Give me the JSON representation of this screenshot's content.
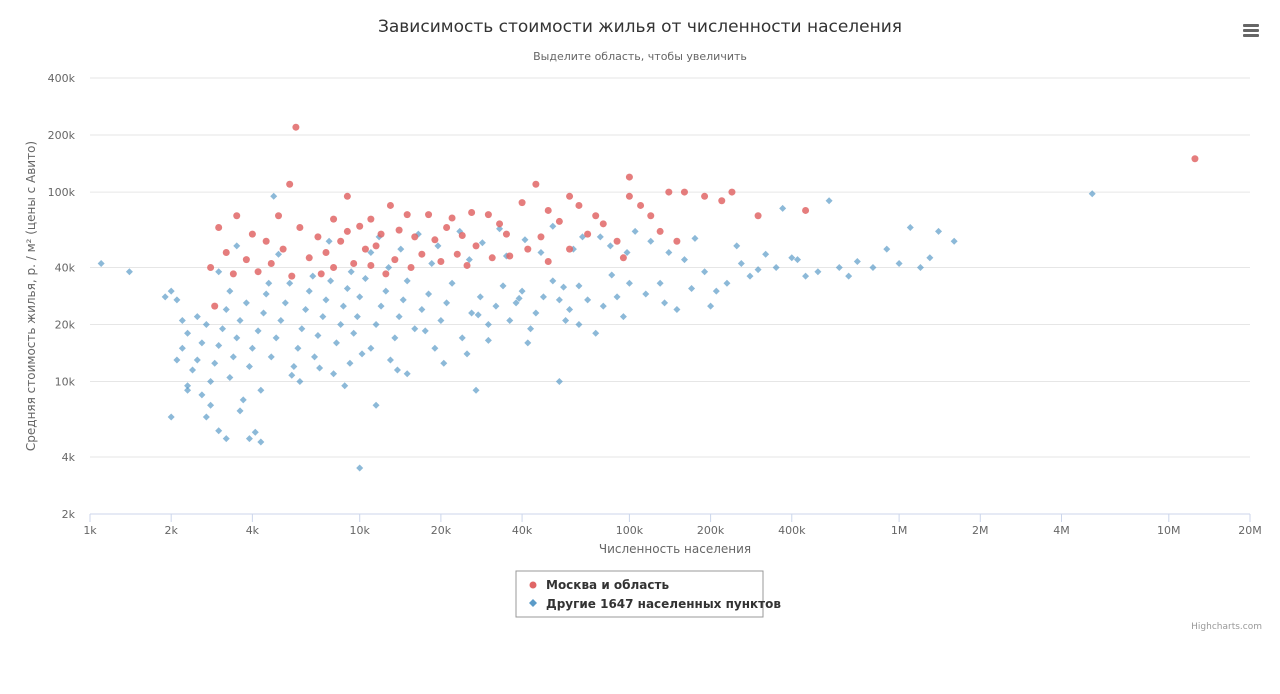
{
  "chart_data": {
    "type": "scatter",
    "title": "Зависимость стоимости жилья от численности населения",
    "subtitle": "Выделите область, чтобы увеличить",
    "xlabel": "Численность населения",
    "ylabel": "Средняя стоимость жилья, р. / м² (цены с Авито)",
    "x_scale": "log",
    "y_scale": "log",
    "xlim": [
      1000,
      20000000
    ],
    "ylim": [
      2000,
      400000
    ],
    "x_ticks": [
      {
        "value": 1000,
        "label": "1k"
      },
      {
        "value": 2000,
        "label": "2k"
      },
      {
        "value": 4000,
        "label": "4k"
      },
      {
        "value": 10000,
        "label": "10k"
      },
      {
        "value": 20000,
        "label": "20k"
      },
      {
        "value": 40000,
        "label": "40k"
      },
      {
        "value": 100000,
        "label": "100k"
      },
      {
        "value": 200000,
        "label": "200k"
      },
      {
        "value": 400000,
        "label": "400k"
      },
      {
        "value": 1000000,
        "label": "1M"
      },
      {
        "value": 2000000,
        "label": "2M"
      },
      {
        "value": 4000000,
        "label": "4M"
      },
      {
        "value": 10000000,
        "label": "10M"
      },
      {
        "value": 20000000,
        "label": "20M"
      }
    ],
    "y_ticks": [
      {
        "value": 2000,
        "label": "2k"
      },
      {
        "value": 4000,
        "label": "4k"
      },
      {
        "value": 10000,
        "label": "10k"
      },
      {
        "value": 20000,
        "label": "20k"
      },
      {
        "value": 40000,
        "label": "40k"
      },
      {
        "value": 100000,
        "label": "100k"
      },
      {
        "value": 200000,
        "label": "200k"
      },
      {
        "value": 400000,
        "label": "400k"
      }
    ],
    "grid": true,
    "legend_position": "bottom-center",
    "credits": "Highcharts.com",
    "series": [
      {
        "name": "Москва и область",
        "color": "#e06666",
        "marker": "circle",
        "points": [
          [
            12500000,
            150000
          ],
          [
            5800,
            220000
          ],
          [
            100000,
            120000
          ],
          [
            100000,
            95000
          ],
          [
            45000,
            110000
          ],
          [
            5500,
            110000
          ],
          [
            60000,
            95000
          ],
          [
            140000,
            100000
          ],
          [
            160000,
            100000
          ],
          [
            190000,
            95000
          ],
          [
            220000,
            90000
          ],
          [
            240000,
            100000
          ],
          [
            300000,
            75000
          ],
          [
            450000,
            80000
          ],
          [
            9000,
            95000
          ],
          [
            13000,
            85000
          ],
          [
            65000,
            85000
          ],
          [
            110000,
            85000
          ],
          [
            50000,
            80000
          ],
          [
            3500,
            75000
          ],
          [
            5000,
            75000
          ],
          [
            8000,
            72000
          ],
          [
            11000,
            72000
          ],
          [
            15000,
            76000
          ],
          [
            18000,
            76000
          ],
          [
            22000,
            73000
          ],
          [
            26000,
            78000
          ],
          [
            30000,
            76000
          ],
          [
            40000,
            88000
          ],
          [
            75000,
            75000
          ],
          [
            120000,
            75000
          ],
          [
            3000,
            65000
          ],
          [
            6000,
            65000
          ],
          [
            10000,
            66000
          ],
          [
            14000,
            63000
          ],
          [
            21000,
            65000
          ],
          [
            33000,
            68000
          ],
          [
            55000,
            70000
          ],
          [
            80000,
            68000
          ],
          [
            4000,
            60000
          ],
          [
            7000,
            58000
          ],
          [
            9000,
            62000
          ],
          [
            12000,
            60000
          ],
          [
            16000,
            58000
          ],
          [
            24000,
            59000
          ],
          [
            35000,
            60000
          ],
          [
            47000,
            58000
          ],
          [
            70000,
            60000
          ],
          [
            130000,
            62000
          ],
          [
            4500,
            55000
          ],
          [
            8500,
            55000
          ],
          [
            11500,
            52000
          ],
          [
            19000,
            56000
          ],
          [
            27000,
            52000
          ],
          [
            42000,
            50000
          ],
          [
            90000,
            55000
          ],
          [
            150000,
            55000
          ],
          [
            3200,
            48000
          ],
          [
            5200,
            50000
          ],
          [
            7500,
            48000
          ],
          [
            10500,
            50000
          ],
          [
            17000,
            47000
          ],
          [
            23000,
            47000
          ],
          [
            31000,
            45000
          ],
          [
            60000,
            50000
          ],
          [
            3800,
            44000
          ],
          [
            6500,
            45000
          ],
          [
            9500,
            42000
          ],
          [
            13500,
            44000
          ],
          [
            20000,
            43000
          ],
          [
            36000,
            46000
          ],
          [
            95000,
            45000
          ],
          [
            2800,
            40000
          ],
          [
            4200,
            38000
          ],
          [
            8000,
            40000
          ],
          [
            11000,
            41000
          ],
          [
            15500,
            40000
          ],
          [
            25000,
            41000
          ],
          [
            50000,
            43000
          ],
          [
            5600,
            36000
          ],
          [
            3400,
            37000
          ],
          [
            7200,
            37000
          ],
          [
            2900,
            25000
          ],
          [
            4700,
            42000
          ],
          [
            12500,
            37000
          ]
        ]
      },
      {
        "name": "Другие 1647 населенных пунктов",
        "color": "#5b9bc8",
        "marker": "diamond",
        "points": [
          [
            1100,
            42000
          ],
          [
            1400,
            38000
          ],
          [
            1900,
            28000
          ],
          [
            2000,
            30000
          ],
          [
            2100,
            27000
          ],
          [
            2000,
            6500
          ],
          [
            2300,
            9500
          ],
          [
            2600,
            8500
          ],
          [
            2800,
            7500
          ],
          [
            3000,
            5500
          ],
          [
            3200,
            5000
          ],
          [
            3600,
            7000
          ],
          [
            3900,
            5000
          ],
          [
            4300,
            4800
          ],
          [
            4100,
            5400
          ],
          [
            10000,
            3500
          ],
          [
            11500,
            7500
          ],
          [
            27000,
            9000
          ],
          [
            55000,
            10000
          ],
          [
            4800,
            95000
          ],
          [
            5200000,
            98000
          ],
          [
            550000,
            90000
          ],
          [
            370000,
            82000
          ],
          [
            1100000,
            65000
          ],
          [
            1400000,
            62000
          ],
          [
            1600000,
            55000
          ],
          [
            1200000,
            40000
          ],
          [
            1000000,
            42000
          ],
          [
            800000,
            40000
          ],
          [
            700000,
            43000
          ],
          [
            600000,
            40000
          ],
          [
            500000,
            38000
          ],
          [
            450000,
            36000
          ],
          [
            400000,
            45000
          ],
          [
            350000,
            40000
          ],
          [
            300000,
            39000
          ],
          [
            260000,
            42000
          ],
          [
            230000,
            33000
          ],
          [
            210000,
            30000
          ],
          [
            190000,
            38000
          ],
          [
            170000,
            31000
          ],
          [
            150000,
            24000
          ],
          [
            130000,
            33000
          ],
          [
            115000,
            29000
          ],
          [
            100000,
            33000
          ],
          [
            90000,
            28000
          ],
          [
            80000,
            25000
          ],
          [
            75000,
            18000
          ],
          [
            70000,
            27000
          ],
          [
            65000,
            32000
          ],
          [
            60000,
            24000
          ],
          [
            55000,
            27000
          ],
          [
            52000,
            34000
          ],
          [
            48000,
            28000
          ],
          [
            45000,
            23000
          ],
          [
            43000,
            19000
          ],
          [
            40000,
            30000
          ],
          [
            38000,
            26000
          ],
          [
            36000,
            21000
          ],
          [
            34000,
            32000
          ],
          [
            32000,
            25000
          ],
          [
            30000,
            20000
          ],
          [
            28000,
            28000
          ],
          [
            26000,
            23000
          ],
          [
            24000,
            17000
          ],
          [
            22000,
            33000
          ],
          [
            21000,
            26000
          ],
          [
            20000,
            21000
          ],
          [
            19000,
            15000
          ],
          [
            18000,
            29000
          ],
          [
            17000,
            24000
          ],
          [
            16000,
            19000
          ],
          [
            15000,
            34000
          ],
          [
            14500,
            27000
          ],
          [
            14000,
            22000
          ],
          [
            13500,
            17000
          ],
          [
            13000,
            13000
          ],
          [
            12500,
            30000
          ],
          [
            12000,
            25000
          ],
          [
            11500,
            20000
          ],
          [
            11000,
            15000
          ],
          [
            10500,
            35000
          ],
          [
            10000,
            28000
          ],
          [
            9800,
            22000
          ],
          [
            9500,
            18000
          ],
          [
            9200,
            12500
          ],
          [
            9000,
            31000
          ],
          [
            8700,
            25000
          ],
          [
            8500,
            20000
          ],
          [
            8200,
            16000
          ],
          [
            8000,
            11000
          ],
          [
            7800,
            34000
          ],
          [
            7500,
            27000
          ],
          [
            7300,
            22000
          ],
          [
            7000,
            17500
          ],
          [
            6800,
            13500
          ],
          [
            6500,
            30000
          ],
          [
            6300,
            24000
          ],
          [
            6100,
            19000
          ],
          [
            5900,
            15000
          ],
          [
            5700,
            12000
          ],
          [
            5500,
            33000
          ],
          [
            5300,
            26000
          ],
          [
            5100,
            21000
          ],
          [
            4900,
            17000
          ],
          [
            4700,
            13500
          ],
          [
            4500,
            29000
          ],
          [
            4400,
            23000
          ],
          [
            4200,
            18500
          ],
          [
            4000,
            15000
          ],
          [
            3900,
            12000
          ],
          [
            3800,
            26000
          ],
          [
            3600,
            21000
          ],
          [
            3500,
            17000
          ],
          [
            3400,
            13500
          ],
          [
            3300,
            10500
          ],
          [
            3200,
            24000
          ],
          [
            3100,
            19000
          ],
          [
            3000,
            15500
          ],
          [
            2900,
            12500
          ],
          [
            2800,
            10000
          ],
          [
            2700,
            20000
          ],
          [
            2600,
            16000
          ],
          [
            2500,
            13000
          ],
          [
            2400,
            11500
          ],
          [
            2300,
            18000
          ],
          [
            2200,
            15000
          ],
          [
            2100,
            13000
          ],
          [
            3300,
            30000
          ],
          [
            4600,
            33000
          ],
          [
            6700,
            36000
          ],
          [
            9300,
            38000
          ],
          [
            12800,
            40000
          ],
          [
            18500,
            42000
          ],
          [
            25500,
            44000
          ],
          [
            35000,
            46000
          ],
          [
            47000,
            48000
          ],
          [
            62000,
            50000
          ],
          [
            85000,
            52000
          ],
          [
            120000,
            55000
          ],
          [
            175000,
            57000
          ],
          [
            250000,
            52000
          ],
          [
            320000,
            47000
          ],
          [
            420000,
            44000
          ],
          [
            650000,
            36000
          ],
          [
            900000,
            50000
          ],
          [
            1300000,
            45000
          ],
          [
            3500,
            52000
          ],
          [
            5000,
            47000
          ],
          [
            7700,
            55000
          ],
          [
            11800,
            58000
          ],
          [
            16500,
            60000
          ],
          [
            23500,
            62000
          ],
          [
            33000,
            64000
          ],
          [
            52000,
            66000
          ],
          [
            78000,
            58000
          ],
          [
            105000,
            62000
          ],
          [
            140000,
            48000
          ],
          [
            3000,
            38000
          ],
          [
            2500,
            22000
          ],
          [
            2200,
            21000
          ],
          [
            15000,
            11000
          ],
          [
            25000,
            14000
          ],
          [
            42000,
            16000
          ],
          [
            65000,
            20000
          ],
          [
            95000,
            22000
          ],
          [
            135000,
            26000
          ],
          [
            200000,
            25000
          ],
          [
            280000,
            36000
          ],
          [
            6000,
            10000
          ],
          [
            8800,
            9500
          ],
          [
            13800,
            11500
          ],
          [
            20500,
            12500
          ],
          [
            30000,
            16500
          ],
          [
            58000,
            21000
          ],
          [
            4300,
            9000
          ],
          [
            5600,
            10800
          ],
          [
            7100,
            11800
          ],
          [
            10200,
            14000
          ],
          [
            17500,
            18500
          ],
          [
            27500,
            22500
          ],
          [
            39000,
            27500
          ],
          [
            57000,
            31500
          ],
          [
            86000,
            36500
          ],
          [
            3700,
            8000
          ],
          [
            2700,
            6500
          ],
          [
            2300,
            9000
          ],
          [
            11000,
            48000
          ],
          [
            14200,
            50000
          ],
          [
            19500,
            52000
          ],
          [
            28500,
            54000
          ],
          [
            41000,
            56000
          ],
          [
            67000,
            58000
          ],
          [
            98000,
            48000
          ],
          [
            160000,
            44000
          ]
        ]
      }
    ]
  },
  "menu_icon": "hamburger-menu-icon"
}
